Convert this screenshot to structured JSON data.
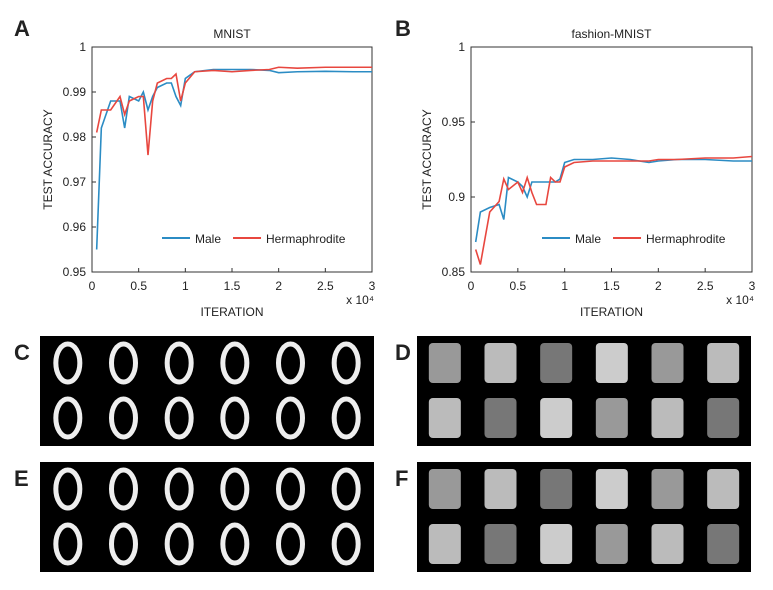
{
  "panel_labels": [
    "A",
    "B",
    "C",
    "D",
    "E",
    "F"
  ],
  "chart_data": [
    {
      "type": "line",
      "title": "MNIST",
      "x_label": "ITERATION",
      "y_label": "TEST ACCURACY",
      "x_scale_label": "x 10⁴",
      "xlim": [
        0,
        3
      ],
      "xticks": [
        0,
        0.5,
        1,
        1.5,
        2,
        2.5,
        3
      ],
      "ylim": [
        0.95,
        1
      ],
      "yticks": [
        0.95,
        0.96,
        0.97,
        0.98,
        0.99,
        1
      ],
      "x": [
        0.05,
        0.1,
        0.2,
        0.3,
        0.35,
        0.4,
        0.5,
        0.55,
        0.6,
        0.65,
        0.7,
        0.8,
        0.85,
        0.9,
        0.95,
        1.0,
        1.1,
        1.3,
        1.5,
        1.7,
        1.9,
        2.0,
        2.2,
        2.5,
        2.8,
        3.0
      ],
      "legend": "lower right",
      "series": [
        {
          "name": "Male",
          "color": "#2b8cc4",
          "values": [
            0.955,
            0.982,
            0.988,
            0.988,
            0.982,
            0.989,
            0.988,
            0.99,
            0.986,
            0.989,
            0.991,
            0.992,
            0.992,
            0.989,
            0.987,
            0.993,
            0.9945,
            0.995,
            0.995,
            0.995,
            0.9948,
            0.9943,
            0.9945,
            0.9946,
            0.9945,
            0.9945
          ]
        },
        {
          "name": "Hermaphrodite",
          "color": "#e8473f",
          "values": [
            0.981,
            0.986,
            0.986,
            0.989,
            0.985,
            0.988,
            0.989,
            0.989,
            0.976,
            0.988,
            0.992,
            0.993,
            0.993,
            0.994,
            0.988,
            0.992,
            0.9945,
            0.9948,
            0.9945,
            0.9948,
            0.995,
            0.9955,
            0.9953,
            0.9955,
            0.9955,
            0.9955
          ]
        }
      ]
    },
    {
      "type": "line",
      "title": "fashion-MNIST",
      "x_label": "ITERATION",
      "y_label": "TEST  ACCURACY",
      "x_scale_label": "x 10⁴",
      "xlim": [
        0,
        3
      ],
      "xticks": [
        0,
        0.5,
        1,
        1.5,
        2,
        2.5,
        3
      ],
      "ylim": [
        0.85,
        1
      ],
      "yticks": [
        0.85,
        0.9,
        0.95,
        1
      ],
      "x": [
        0.05,
        0.1,
        0.2,
        0.3,
        0.35,
        0.4,
        0.5,
        0.55,
        0.6,
        0.65,
        0.7,
        0.8,
        0.85,
        0.9,
        0.95,
        1.0,
        1.1,
        1.3,
        1.5,
        1.7,
        1.9,
        2.0,
        2.2,
        2.5,
        2.8,
        3.0
      ],
      "legend": "lower right",
      "series": [
        {
          "name": "Male",
          "color": "#2b8cc4",
          "values": [
            0.87,
            0.89,
            0.893,
            0.895,
            0.885,
            0.913,
            0.91,
            0.907,
            0.9,
            0.91,
            0.91,
            0.91,
            0.91,
            0.91,
            0.912,
            0.923,
            0.925,
            0.925,
            0.926,
            0.925,
            0.923,
            0.924,
            0.925,
            0.925,
            0.924,
            0.924
          ]
        },
        {
          "name": "Hermaphrodite",
          "color": "#e8473f",
          "values": [
            0.865,
            0.855,
            0.89,
            0.897,
            0.912,
            0.905,
            0.91,
            0.903,
            0.913,
            0.903,
            0.895,
            0.895,
            0.913,
            0.91,
            0.91,
            0.92,
            0.923,
            0.924,
            0.924,
            0.924,
            0.924,
            0.925,
            0.925,
            0.926,
            0.926,
            0.927
          ]
        }
      ]
    }
  ]
}
